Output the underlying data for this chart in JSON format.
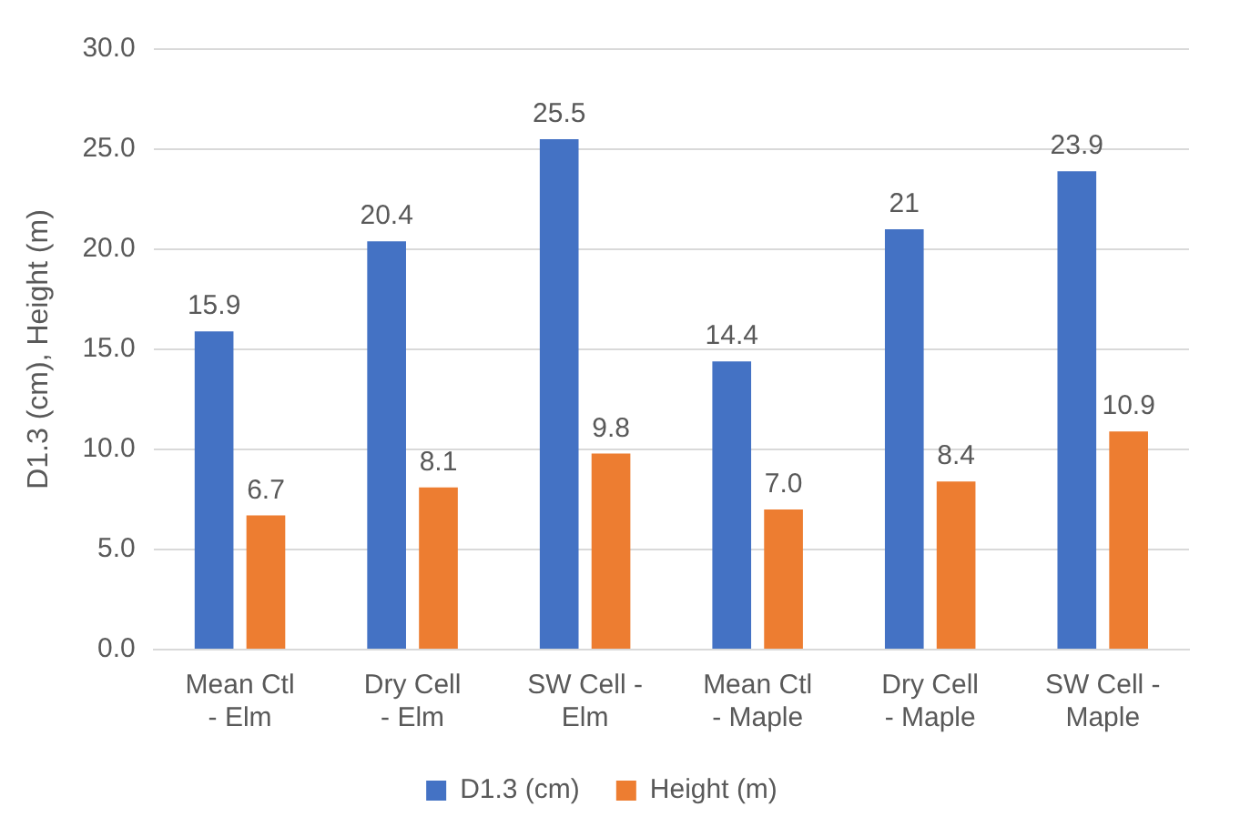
{
  "chart_data": {
    "type": "bar",
    "ylabel": "D1.3 (cm), Height (m)",
    "categories": [
      "Mean Ctl - Elm",
      "Dry Cell - Elm",
      "SW Cell - Elm",
      "Mean Ctl - Maple",
      "Dry Cell - Maple",
      "SW Cell - Maple"
    ],
    "series": [
      {
        "name": "D1.3 (cm)",
        "color": "#4472c4",
        "values": [
          15.9,
          20.4,
          25.5,
          14.4,
          21,
          23.9
        ],
        "value_labels": [
          "15.9",
          "20.4",
          "25.5",
          "14.4",
          "21",
          "23.9"
        ]
      },
      {
        "name": "Height (m)",
        "color": "#ed7d31",
        "values": [
          6.7,
          8.1,
          9.8,
          7.0,
          8.4,
          10.9
        ],
        "value_labels": [
          "6.7",
          "8.1",
          "9.8",
          "7.0",
          "8.4",
          "10.9"
        ]
      }
    ],
    "ylim": [
      0,
      30
    ],
    "yticks": [
      {
        "value": 0,
        "label": "0.0"
      },
      {
        "value": 5,
        "label": "5.0"
      },
      {
        "value": 10,
        "label": "10.0"
      },
      {
        "value": 15,
        "label": "15.0"
      },
      {
        "value": 20,
        "label": "20.0"
      },
      {
        "value": 25,
        "label": "25.0"
      },
      {
        "value": 30,
        "label": "30.0"
      }
    ],
    "grid": "y",
    "legend": "bottom"
  }
}
